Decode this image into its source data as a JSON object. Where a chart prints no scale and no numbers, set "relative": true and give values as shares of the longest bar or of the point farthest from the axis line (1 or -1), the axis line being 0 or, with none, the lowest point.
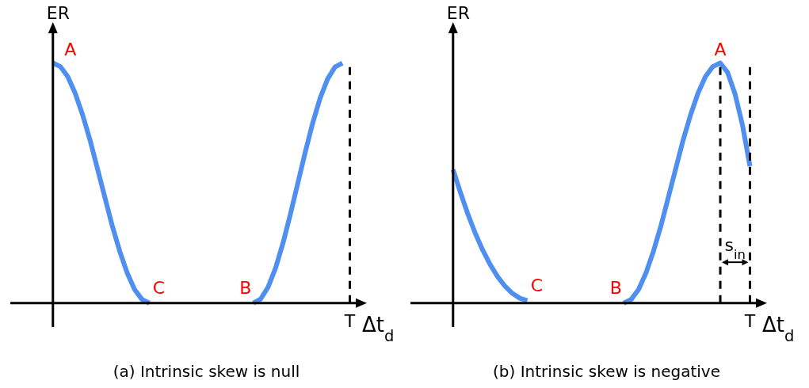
{
  "chart_data": [
    {
      "type": "line",
      "title": "(a) Intrinsic skew is null",
      "xlabel": "Δt$_{d}$",
      "ylabel": "ER",
      "relative": true,
      "marker": "none",
      "line_style": "solid",
      "legend": false,
      "grid": false,
      "categories": [
        null,
        null,
        null,
        null,
        null,
        null,
        null,
        null,
        null,
        null,
        null,
        null,
        null,
        null,
        null,
        null,
        null,
        null,
        null,
        null,
        null,
        null,
        null,
        null,
        null,
        null,
        null,
        null,
        null,
        null,
        null,
        null,
        null,
        null,
        null,
        null,
        null,
        null,
        null,
        null,
        null
      ],
      "series": [
        {
          "color": "#4f8ff0",
          "values": [
            1,
            0.985,
            0.943,
            0.874,
            0.784,
            0.679,
            0.56,
            0.44,
            0.321,
            0.216,
            0.126,
            0.057,
            0.015,
            0,
            null,
            null,
            null,
            null,
            null,
            null,
            null,
            null,
            null,
            null,
            null,
            null,
            null,
            null,
            null,
            null,
            null,
            null,
            null,
            null,
            null,
            null,
            null,
            null,
            null,
            null,
            null
          ]
        },
        {
          "color": "#4f8ff0",
          "values": [
            null,
            null,
            null,
            null,
            null,
            null,
            null,
            null,
            null,
            null,
            null,
            null,
            null,
            null,
            null,
            null,
            null,
            null,
            null,
            null,
            null,
            null,
            null,
            null,
            null,
            null,
            null,
            0,
            0.017,
            0.067,
            0.146,
            0.25,
            0.371,
            0.5,
            0.629,
            0.75,
            0.854,
            0.933,
            0.983,
            1,
            null
          ]
        }
      ],
      "annotations": [
        "A",
        "C",
        "B",
        "T"
      ]
    },
    {
      "type": "line",
      "title": "(b) Intrinsic skew is negative",
      "xlabel": "Δt$_{d}$",
      "ylabel": "ER",
      "relative": true,
      "marker": "none",
      "line_style": "solid",
      "legend": false,
      "grid": false,
      "categories": [
        null,
        null,
        null,
        null,
        null,
        null,
        null,
        null,
        null,
        null,
        null,
        null,
        null,
        null,
        null,
        null,
        null,
        null,
        null,
        null,
        null,
        null,
        null,
        null,
        null,
        null,
        null,
        null,
        null,
        null,
        null,
        null,
        null,
        null,
        null,
        null,
        null,
        null,
        null,
        null,
        null
      ],
      "series": [
        {
          "color": "#4f8ff0",
          "values": [
            0.556,
            0.46,
            0.37,
            0.29,
            0.22,
            0.16,
            0.11,
            0.07,
            0.04,
            0.02,
            0.01,
            null,
            null,
            null,
            null,
            null,
            null,
            null,
            null,
            null,
            null,
            null,
            null,
            null,
            null,
            null,
            null,
            null,
            null,
            null,
            null,
            null,
            null,
            null,
            null,
            null,
            null,
            null,
            null,
            null,
            null
          ]
        },
        {
          "color": "#4f8ff0",
          "values": [
            null,
            null,
            null,
            null,
            null,
            null,
            null,
            null,
            null,
            null,
            null,
            null,
            null,
            null,
            null,
            null,
            null,
            null,
            null,
            null,
            null,
            null,
            null,
            0,
            0.015,
            0.057,
            0.126,
            0.216,
            0.321,
            0.44,
            0.56,
            0.679,
            0.784,
            0.874,
            0.943,
            0.985,
            1,
            0.96,
            0.87,
            0.74,
            0.57
          ]
        }
      ],
      "annotations": [
        "A",
        "C",
        "B",
        "T",
        "s$_{in}$"
      ]
    }
  ]
}
